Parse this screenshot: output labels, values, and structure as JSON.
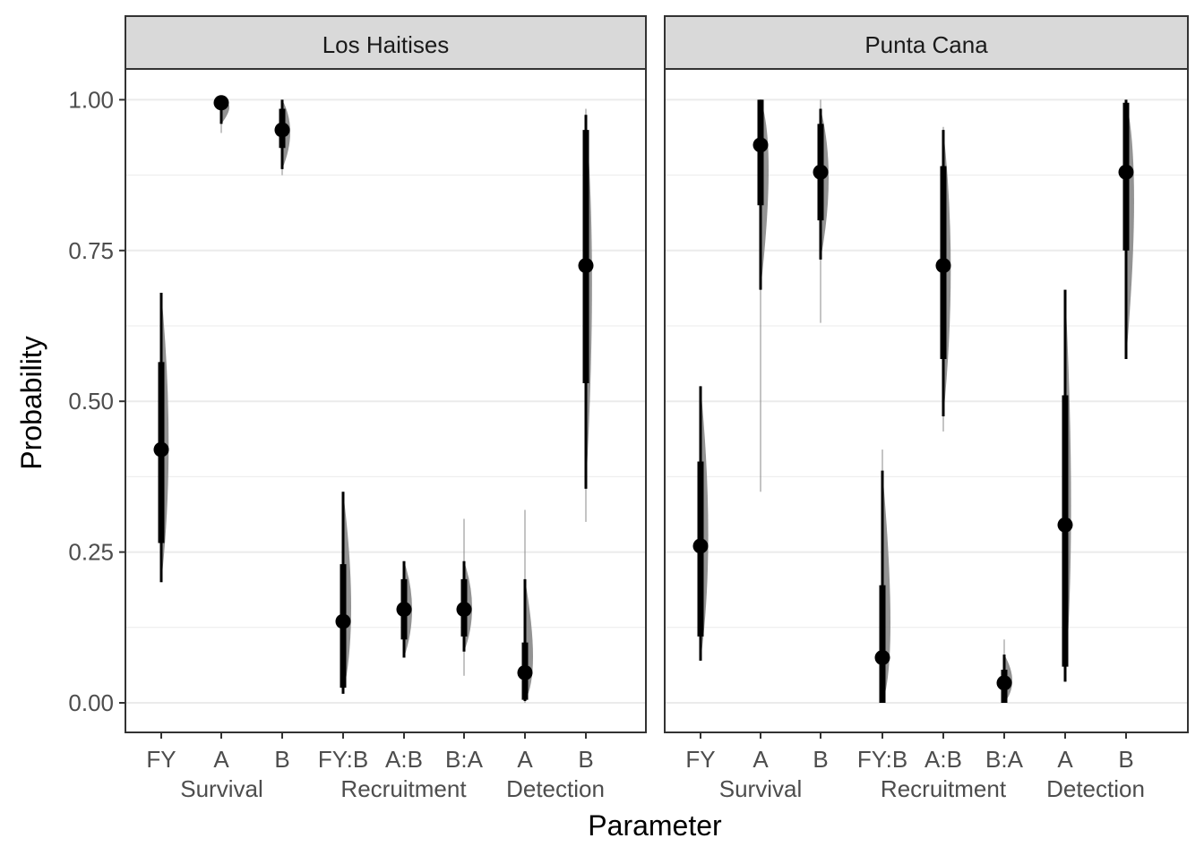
{
  "chart_data": {
    "type": "pointinterval",
    "xlabel": "Parameter",
    "ylabel": "Probability",
    "ylim": [
      -0.05,
      1.05
    ],
    "y_ticks": [
      "0.00",
      "0.25",
      "0.50",
      "0.75",
      "1.00"
    ],
    "y_tick_values": [
      0,
      0.25,
      0.5,
      0.75,
      1
    ],
    "grid": "on",
    "categories": [
      "FY",
      "A",
      "B",
      "FY:B",
      "A:B",
      "B:A",
      "A",
      "B"
    ],
    "groups": [
      {
        "label": "Survival",
        "members": [
          0,
          1,
          2
        ]
      },
      {
        "label": "Recruitment",
        "members": [
          3,
          4,
          5
        ]
      },
      {
        "label": "Detection",
        "members": [
          6,
          7
        ]
      }
    ],
    "colors": {
      "interval": "#000000",
      "density": "#808080",
      "strip": "#d9d9d9",
      "grid": "#ebebeb",
      "border": "#333333"
    },
    "panels": [
      {
        "title": "Los Haitises",
        "series": [
          {
            "estimate": 0.42,
            "inner": [
              0.265,
              0.565
            ],
            "outer": [
              0.2,
              0.68
            ],
            "tail": [
              0.2,
              0.68
            ]
          },
          {
            "estimate": 0.995,
            "inner": [
              0.985,
              1.0
            ],
            "outer": [
              0.96,
              1.0
            ],
            "tail": [
              0.945,
              1.0
            ]
          },
          {
            "estimate": 0.95,
            "inner": [
              0.92,
              0.985
            ],
            "outer": [
              0.885,
              1.0
            ],
            "tail": [
              0.875,
              1.0
            ]
          },
          {
            "estimate": 0.135,
            "inner": [
              0.025,
              0.23
            ],
            "outer": [
              0.015,
              0.35
            ],
            "tail": [
              0.015,
              0.35
            ]
          },
          {
            "estimate": 0.155,
            "inner": [
              0.105,
              0.205
            ],
            "outer": [
              0.075,
              0.235
            ],
            "tail": [
              0.075,
              0.235
            ]
          },
          {
            "estimate": 0.155,
            "inner": [
              0.11,
              0.205
            ],
            "outer": [
              0.085,
              0.235
            ],
            "tail": [
              0.045,
              0.305
            ]
          },
          {
            "estimate": 0.05,
            "inner": [
              0.005,
              0.1
            ],
            "outer": [
              0.003,
              0.205
            ],
            "tail": [
              0.0,
              0.32
            ]
          },
          {
            "estimate": 0.725,
            "inner": [
              0.53,
              0.95
            ],
            "outer": [
              0.355,
              0.975
            ],
            "tail": [
              0.3,
              0.985
            ]
          }
        ]
      },
      {
        "title": "Punta Cana",
        "series": [
          {
            "estimate": 0.26,
            "inner": [
              0.11,
              0.4
            ],
            "outer": [
              0.07,
              0.525
            ],
            "tail": [
              0.07,
              0.525
            ]
          },
          {
            "estimate": 0.925,
            "inner": [
              0.825,
              1.0
            ],
            "outer": [
              0.685,
              1.0
            ],
            "tail": [
              0.35,
              1.0
            ]
          },
          {
            "estimate": 0.88,
            "inner": [
              0.8,
              0.96
            ],
            "outer": [
              0.735,
              0.985
            ],
            "tail": [
              0.63,
              1.0
            ]
          },
          {
            "estimate": 0.075,
            "inner": [
              0.0,
              0.195
            ],
            "outer": [
              0.0,
              0.385
            ],
            "tail": [
              0.0,
              0.42
            ]
          },
          {
            "estimate": 0.725,
            "inner": [
              0.57,
              0.89
            ],
            "outer": [
              0.475,
              0.95
            ],
            "tail": [
              0.45,
              0.955
            ]
          },
          {
            "estimate": 0.033,
            "inner": [
              0.0,
              0.055
            ],
            "outer": [
              0.0,
              0.08
            ],
            "tail": [
              0.0,
              0.105
            ]
          },
          {
            "estimate": 0.295,
            "inner": [
              0.06,
              0.51
            ],
            "outer": [
              0.035,
              0.685
            ],
            "tail": [
              0.035,
              0.685
            ]
          },
          {
            "estimate": 0.88,
            "inner": [
              0.75,
              0.995
            ],
            "outer": [
              0.57,
              1.0
            ],
            "tail": [
              0.57,
              1.0
            ]
          }
        ]
      }
    ]
  }
}
